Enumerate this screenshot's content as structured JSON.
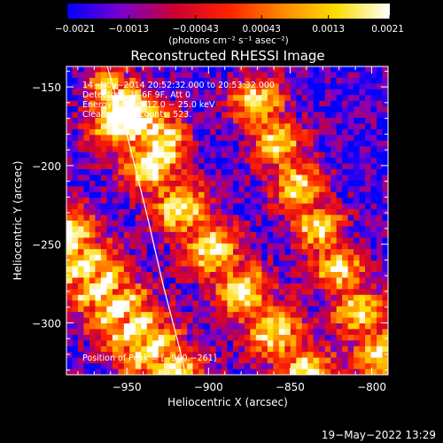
{
  "chart_data": {
    "type": "heatmap",
    "title": "Reconstructed RHESSI Image",
    "xlabel": "Heliocentric X (arcsec)",
    "ylabel": "Heliocentric Y (arcsec)",
    "xlim": [
      -987,
      -790
    ],
    "ylim": [
      -333,
      -137
    ],
    "xticks": [
      -950,
      -900,
      -850,
      -800
    ],
    "xtick_labels": [
      "−950",
      "−900",
      "−850",
      "−800"
    ],
    "yticks": [
      -150,
      -200,
      -250,
      -300
    ],
    "ytick_labels": [
      "−150",
      "−200",
      "−250",
      "−300"
    ],
    "colorbar": {
      "min": -0.0021,
      "max": 0.0021,
      "ticks": [
        -0.0021,
        -0.0013,
        -0.00043,
        0.00043,
        0.0013,
        0.0021
      ],
      "tick_labels": [
        "−0.0021",
        "−0.0013",
        "−0.00043",
        "0.00043",
        "0.0013",
        "0.0021"
      ],
      "unit_label": "(photons cm⁻² s⁻¹ asec⁻²)",
      "colors": [
        "#0000ff",
        "#7a00cc",
        "#cc0033",
        "#ff2200",
        "#ff8800",
        "#ffdd00",
        "#ffffff"
      ]
    },
    "annotations": [
      "14−Nov−2014 20:52:32.000 to 20:53:32.000",
      "Detectors: 3F 6F 9F, Att 0",
      "Energy Range: 12.0 − 25.0 keV",
      "Clean    Total counts: 523."
    ],
    "peak_label": "Position of Peak = [−960,−261]",
    "peak": {
      "x": -960,
      "y": -261
    },
    "limb_curve": [
      {
        "x": -962,
        "y": -137
      },
      {
        "x": -950,
        "y": -180
      },
      {
        "x": -938,
        "y": -230
      },
      {
        "x": -928,
        "y": -275
      },
      {
        "x": -918,
        "y": -315
      },
      {
        "x": -914,
        "y": -333
      }
    ],
    "bands": [
      {
        "x0": -987,
        "y0": -250,
        "x1": -925,
        "y1": -333,
        "peak": 0.0021,
        "width": 16
      },
      {
        "x0": -955,
        "y0": -175,
        "x1": -840,
        "y1": -333,
        "peak": 0.0016,
        "width": 13
      },
      {
        "x0": -870,
        "y0": -160,
        "x1": -795,
        "y1": -320,
        "peak": 0.0014,
        "width": 12
      },
      {
        "x0": -960,
        "y0": -150,
        "x1": -925,
        "y1": -180,
        "peak": 0.0009,
        "width": 10
      }
    ],
    "grid": false
  },
  "footer": {
    "date": "19−May−2022 13:29"
  }
}
